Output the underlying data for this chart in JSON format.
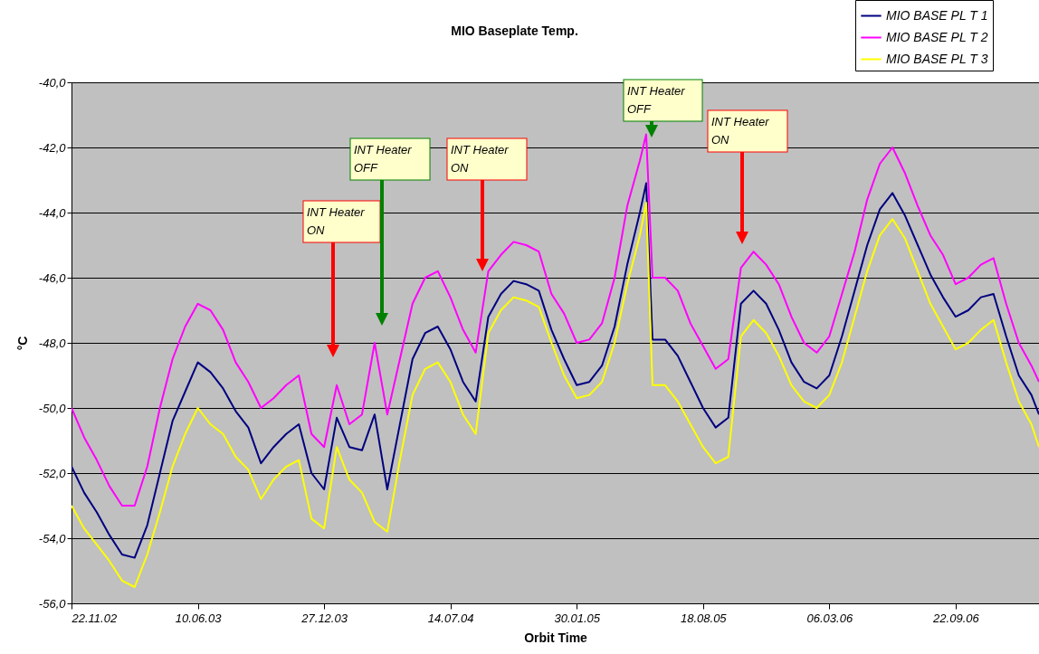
{
  "chart_data": {
    "type": "line",
    "title": "MIO Baseplate Temp.",
    "xlabel": "Orbit Time",
    "ylabel": "°C",
    "x": [
      "2002-11-22",
      "2002-12-12",
      "2003-01-01",
      "2003-01-21",
      "2003-02-10",
      "2003-03-02",
      "2003-03-22",
      "2003-04-11",
      "2003-05-01",
      "2003-05-21",
      "2003-06-10",
      "2003-06-30",
      "2003-07-20",
      "2003-08-09",
      "2003-08-29",
      "2003-09-18",
      "2003-10-08",
      "2003-10-28",
      "2003-11-17",
      "2003-12-07",
      "2003-12-27",
      "2004-01-16",
      "2004-02-05",
      "2004-02-25",
      "2004-03-16",
      "2004-04-05",
      "2004-04-25",
      "2004-05-15",
      "2004-06-04",
      "2004-06-24",
      "2004-07-14",
      "2004-08-03",
      "2004-08-23",
      "2004-09-12",
      "2004-10-02",
      "2004-10-22",
      "2004-11-11",
      "2004-12-01",
      "2004-12-21",
      "2005-01-10",
      "2005-01-30",
      "2005-02-19",
      "2005-03-11",
      "2005-03-31",
      "2005-04-20",
      "2005-05-10",
      "2005-05-20",
      "2005-05-30",
      "2005-06-19",
      "2005-07-09",
      "2005-07-29",
      "2005-08-18",
      "2005-09-07",
      "2005-09-27",
      "2005-10-17",
      "2005-11-06",
      "2005-11-26",
      "2005-12-16",
      "2006-01-05",
      "2006-01-25",
      "2006-02-14",
      "2006-03-06",
      "2006-03-26",
      "2006-04-15",
      "2006-05-05",
      "2006-05-25",
      "2006-06-14",
      "2006-07-04",
      "2006-07-24",
      "2006-08-13",
      "2006-09-02",
      "2006-09-22",
      "2006-10-12",
      "2006-11-01",
      "2006-11-21",
      "2006-12-11",
      "2006-12-31",
      "2007-01-20",
      "2007-02-01"
    ],
    "series": [
      {
        "name": "MIO BASE PL T 1",
        "color": "#000080",
        "values": [
          -51.8,
          -52.6,
          -53.2,
          -53.9,
          -54.5,
          -54.6,
          -53.6,
          -52.0,
          -50.4,
          -49.5,
          -48.6,
          -48.9,
          -49.4,
          -50.1,
          -50.6,
          -51.7,
          -51.2,
          -50.8,
          -50.5,
          -52.0,
          -52.5,
          -50.3,
          -51.2,
          -51.3,
          -50.2,
          -52.5,
          -50.5,
          -48.5,
          -47.7,
          -47.5,
          -48.2,
          -49.2,
          -49.8,
          -47.2,
          -46.5,
          -46.1,
          -46.2,
          -46.4,
          -47.6,
          -48.5,
          -49.3,
          -49.2,
          -48.7,
          -47.5,
          -45.6,
          -44.0,
          -43.1,
          -47.9,
          -47.9,
          -48.4,
          -49.2,
          -50.0,
          -50.6,
          -50.3,
          -46.8,
          -46.4,
          -46.8,
          -47.6,
          -48.6,
          -49.2,
          -49.4,
          -49.0,
          -47.8,
          -46.4,
          -45.0,
          -43.9,
          -43.4,
          -44.1,
          -45.0,
          -45.9,
          -46.6,
          -47.2,
          -47.0,
          -46.6,
          -46.5,
          -47.8,
          -49.0,
          -49.6,
          -50.2
        ]
      },
      {
        "name": "MIO BASE PL T 2",
        "color": "#ff00ff",
        "values": [
          -50.0,
          -50.9,
          -51.6,
          -52.4,
          -53.0,
          -53.0,
          -51.8,
          -50.0,
          -48.5,
          -47.5,
          -46.8,
          -47.0,
          -47.6,
          -48.6,
          -49.2,
          -50.0,
          -49.7,
          -49.3,
          -49.0,
          -50.8,
          -51.2,
          -49.3,
          -50.5,
          -50.2,
          -48.0,
          -50.2,
          -48.5,
          -46.8,
          -46.0,
          -45.8,
          -46.6,
          -47.6,
          -48.3,
          -45.8,
          -45.3,
          -44.9,
          -45.0,
          -45.2,
          -46.5,
          -47.1,
          -48.0,
          -47.9,
          -47.4,
          -46.0,
          -43.8,
          -42.4,
          -41.6,
          -46.0,
          -46.0,
          -46.4,
          -47.4,
          -48.1,
          -48.8,
          -48.5,
          -45.7,
          -45.2,
          -45.6,
          -46.2,
          -47.2,
          -48.0,
          -48.3,
          -47.8,
          -46.5,
          -45.2,
          -43.6,
          -42.5,
          -42.0,
          -42.8,
          -43.8,
          -44.7,
          -45.3,
          -46.2,
          -46.0,
          -45.6,
          -45.4,
          -46.8,
          -48.0,
          -48.7,
          -49.2
        ]
      },
      {
        "name": "MIO BASE PL T 3",
        "color": "#ffff00",
        "values": [
          -53.0,
          -53.7,
          -54.2,
          -54.7,
          -55.3,
          -55.5,
          -54.5,
          -53.2,
          -51.8,
          -50.8,
          -50.0,
          -50.5,
          -50.8,
          -51.5,
          -51.9,
          -52.8,
          -52.2,
          -51.8,
          -51.6,
          -53.4,
          -53.7,
          -51.2,
          -52.2,
          -52.6,
          -53.5,
          -53.8,
          -51.6,
          -49.6,
          -48.8,
          -48.6,
          -49.2,
          -50.2,
          -50.8,
          -47.7,
          -47.0,
          -46.6,
          -46.7,
          -46.9,
          -48.0,
          -49.0,
          -49.7,
          -49.6,
          -49.2,
          -48.0,
          -46.2,
          -44.7,
          -43.7,
          -49.3,
          -49.3,
          -49.8,
          -50.5,
          -51.2,
          -51.7,
          -51.5,
          -47.8,
          -47.3,
          -47.7,
          -48.4,
          -49.3,
          -49.8,
          -50.0,
          -49.6,
          -48.6,
          -47.2,
          -45.8,
          -44.7,
          -44.2,
          -44.8,
          -45.8,
          -46.8,
          -47.5,
          -48.2,
          -48.0,
          -47.6,
          -47.3,
          -48.6,
          -49.8,
          -50.5,
          -51.2
        ]
      }
    ],
    "xlim": [
      "2002-11-22",
      "2007-02-01"
    ],
    "xticks": [
      {
        "value": "2002-11-22",
        "label": "22.11.02"
      },
      {
        "value": "2003-06-10",
        "label": "10.06.03"
      },
      {
        "value": "2003-12-27",
        "label": "27.12.03"
      },
      {
        "value": "2004-07-14",
        "label": "14.07.04"
      },
      {
        "value": "2005-01-30",
        "label": "30.01.05"
      },
      {
        "value": "2005-08-18",
        "label": "18.08.05"
      },
      {
        "value": "2006-03-06",
        "label": "06.03.06"
      },
      {
        "value": "2006-09-22",
        "label": "22.09.06"
      }
    ],
    "ylim": [
      -56,
      -40
    ],
    "yticks": [
      {
        "value": -56,
        "label": "-56,0"
      },
      {
        "value": -54,
        "label": "-54,0"
      },
      {
        "value": -52,
        "label": "-52,0"
      },
      {
        "value": -50,
        "label": "-50,0"
      },
      {
        "value": -48,
        "label": "-48,0"
      },
      {
        "value": -46,
        "label": "-46,0"
      },
      {
        "value": -44,
        "label": "-44,0"
      },
      {
        "value": -42,
        "label": "-42,0"
      },
      {
        "value": -40,
        "label": "-40,0"
      }
    ],
    "grid": "y",
    "legend": "top right",
    "marker": "none",
    "line_style": "solid",
    "annotations": [
      "INT Heater\nON",
      "INT Heater\nOFF",
      "INT Heater\nON",
      "INT Heater\nOFF",
      "INT Heater\nON"
    ]
  }
}
